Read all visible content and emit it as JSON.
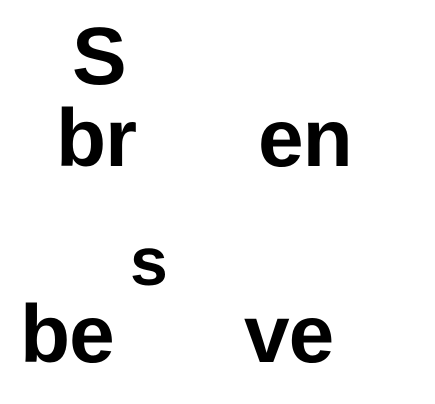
{
  "fragments": {
    "top_superscript": "S",
    "top_left": "br",
    "top_right": "en",
    "bottom_superscript": "s",
    "bottom_left": "be",
    "bottom_right": "ve"
  },
  "colors": {
    "text": "#000000",
    "background": "#ffffff"
  }
}
